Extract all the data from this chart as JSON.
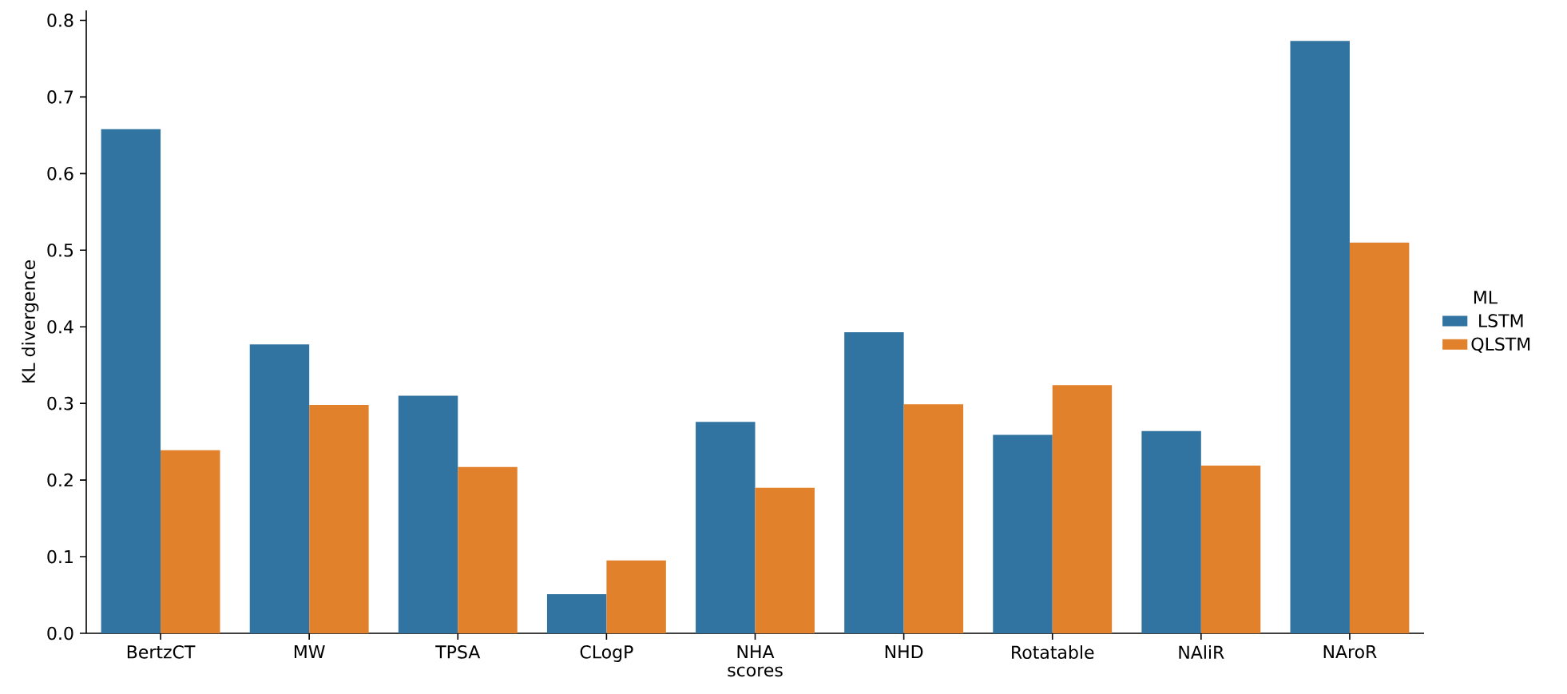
{
  "chart_data": {
    "type": "bar",
    "xlabel": "scores",
    "ylabel": "KL divergence",
    "legend_title": "ML",
    "legend": "right",
    "categories": [
      "BertzCT",
      "MW",
      "TPSA",
      "CLogP",
      "NHA",
      "NHD",
      "Rotatable",
      "NAliR",
      "NAroR"
    ],
    "series": [
      {
        "name": "LSTM",
        "color": "#3274a1",
        "values": [
          0.658,
          0.377,
          0.31,
          0.051,
          0.276,
          0.393,
          0.259,
          0.264,
          0.773
        ]
      },
      {
        "name": "QLSTM",
        "color": "#e1812c",
        "values": [
          0.239,
          0.298,
          0.217,
          0.095,
          0.19,
          0.299,
          0.324,
          0.219,
          0.51
        ]
      }
    ],
    "ylim": [
      0,
      0.813
    ],
    "yticks": [
      {
        "value": 0,
        "label": "0.0"
      },
      0.1,
      0.2,
      0.3,
      0.4,
      0.5,
      0.6,
      0.7,
      0.8
    ]
  }
}
